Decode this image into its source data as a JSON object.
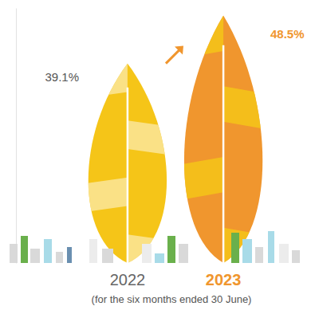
{
  "chart_data": {
    "type": "bar",
    "categories": [
      "2022",
      "2023"
    ],
    "values": [
      39.1,
      48.5
    ],
    "value_labels": [
      "39.1%",
      "48.5%"
    ],
    "data_labels": true,
    "colors": [
      "#f5c518",
      "#f0962e"
    ],
    "ylim": [
      0,
      50
    ],
    "yticks": [],
    "tick_labels": "x",
    "subtitle": "(for the six months ended 30 June)"
  }
}
